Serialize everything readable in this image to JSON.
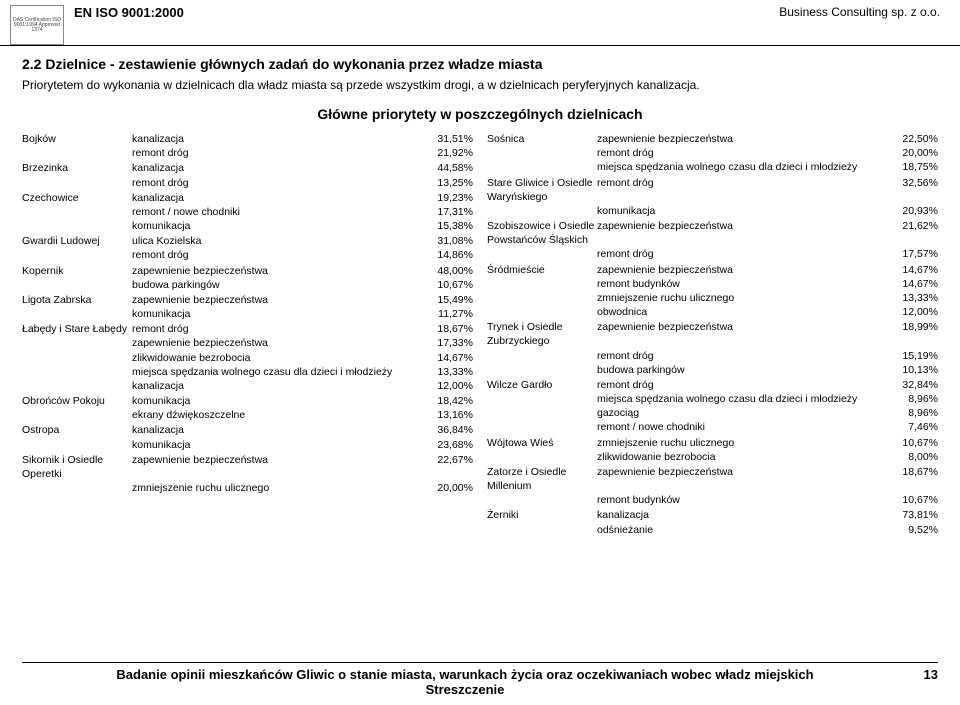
{
  "header": {
    "cert": "DAS\nCertification\nISO 9001:1994\nApproved\n1374",
    "iso": "EN ISO 9001:2000",
    "company": "Business Consulting sp. z o.o."
  },
  "section": {
    "title": "2.2   Dzielnice - zestawienie głównych zadań do wykonania przez władze miasta",
    "intro": "Priorytetem do wykonania w dzielnicach dla władz miasta są przede wszystkim drogi, a w dzielnicach peryferyjnych kanalizacja.",
    "subtitle": "Główne priorytety w poszczególnych dzielnicach"
  },
  "left": [
    {
      "name": "Bojków",
      "rows": [
        [
          "kanalizacja",
          "31,51%"
        ],
        [
          "remont dróg",
          "21,92%"
        ]
      ]
    },
    {
      "name": "Brzezinka",
      "rows": [
        [
          "kanalizacja",
          "44,58%"
        ],
        [
          "remont dróg",
          "13,25%"
        ]
      ]
    },
    {
      "name": "Czechowice",
      "rows": [
        [
          "kanalizacja",
          "19,23%"
        ],
        [
          "remont / nowe chodniki",
          "17,31%"
        ],
        [
          "komunikacja",
          "15,38%"
        ]
      ]
    },
    {
      "name": "Gwardii Ludowej",
      "rows": [
        [
          "ulica Kozielska",
          "31,08%"
        ],
        [
          "remont dróg",
          "14,86%"
        ]
      ]
    },
    {
      "name": "Kopernik",
      "rows": [
        [
          "zapewnienie bezpieczeństwa",
          "48,00%"
        ],
        [
          "budowa parkingów",
          "10,67%"
        ]
      ]
    },
    {
      "name": "Ligota Zabrska",
      "rows": [
        [
          "zapewnienie bezpieczeństwa",
          "15,49%"
        ],
        [
          "komunikacja",
          "11,27%"
        ]
      ]
    },
    {
      "name": "Łabędy i Stare Łabędy",
      "rows": [
        [
          "remont dróg",
          "18,67%"
        ],
        [
          "zapewnienie bezpieczeństwa",
          "17,33%"
        ],
        [
          "zlikwidowanie bezrobocia",
          "14,67%"
        ],
        [
          "miejsca spędzania wolnego czasu dla dzieci i młodzieży",
          "13,33%"
        ],
        [
          "kanalizacja",
          "12,00%"
        ]
      ]
    },
    {
      "name": "Obrońców Pokoju",
      "rows": [
        [
          "komunikacja",
          "18,42%"
        ],
        [
          "ekrany dźwiękoszczelne",
          "13,16%"
        ]
      ]
    },
    {
      "name": "Ostropa",
      "rows": [
        [
          "kanalizacja",
          "36,84%"
        ],
        [
          "komunikacja",
          "23,68%"
        ]
      ]
    },
    {
      "name": "Sikornik i Osiedle Operetki",
      "rows": [
        [
          "zapewnienie bezpieczeństwa",
          "22,67%"
        ],
        [
          "zmniejszenie ruchu ulicznego",
          "20,00%"
        ]
      ]
    }
  ],
  "right": [
    {
      "name": "Sośnica",
      "rows": [
        [
          "zapewnienie bezpieczeństwa",
          "22,50%"
        ],
        [
          "remont dróg",
          "20,00%"
        ],
        [
          "miejsca spędzania wolnego czasu dla dzieci i młodzieży",
          "18,75%"
        ]
      ]
    },
    {
      "name": "Stare Gliwice i Osiedle Waryńskiego",
      "rows": [
        [
          "remont dróg",
          "32,56%"
        ],
        [
          "komunikacja",
          "20,93%"
        ]
      ]
    },
    {
      "name": "Szobiszowice i Osiedle Powstańców Śląskich",
      "rows": [
        [
          "zapewnienie bezpieczeństwa",
          "21,62%"
        ],
        [
          "remont dróg",
          "17,57%"
        ]
      ]
    },
    {
      "name": "Śródmieście",
      "rows": [
        [
          "zapewnienie bezpieczeństwa",
          "14,67%"
        ],
        [
          "remont budynków",
          "14,67%"
        ],
        [
          "zmniejszenie ruchu ulicznego",
          "13,33%"
        ],
        [
          "obwodnica",
          "12,00%"
        ]
      ]
    },
    {
      "name": "Trynek i Osiedle Zubrzyckiego",
      "rows": [
        [
          "zapewnienie bezpieczeństwa",
          "18,99%"
        ],
        [
          "remont dróg",
          "15,19%"
        ],
        [
          "budowa parkingów",
          "10,13%"
        ]
      ]
    },
    {
      "name": "Wilcze Gardło",
      "rows": [
        [
          "remont dróg",
          "32,84%"
        ],
        [
          "miejsca spędzania wolnego czasu dla dzieci i młodzieży",
          "8,96%"
        ],
        [
          "gazociąg",
          "8,96%"
        ],
        [
          "remont / nowe chodniki",
          "7,46%"
        ]
      ]
    },
    {
      "name": "Wójtowa Wieś",
      "rows": [
        [
          "zmniejszenie ruchu ulicznego",
          "10,67%"
        ],
        [
          "zlikwidowanie bezrobocia",
          "8,00%"
        ]
      ]
    },
    {
      "name": "Zatorze i Osiedle Millenium",
      "rows": [
        [
          "zapewnienie bezpieczeństwa",
          "18,67%"
        ],
        [
          "remont budynków",
          "10,67%"
        ]
      ]
    },
    {
      "name": "Żerniki",
      "rows": [
        [
          "kanalizacja",
          "73,81%"
        ],
        [
          "odśnieżanie",
          "9,52%"
        ]
      ]
    }
  ],
  "footer": {
    "text": "Badanie opinii mieszkańców Gliwic o stanie miasta, warunkach życia oraz oczekiwaniach wobec władz miejskich\nStreszczenie",
    "page": "13"
  }
}
